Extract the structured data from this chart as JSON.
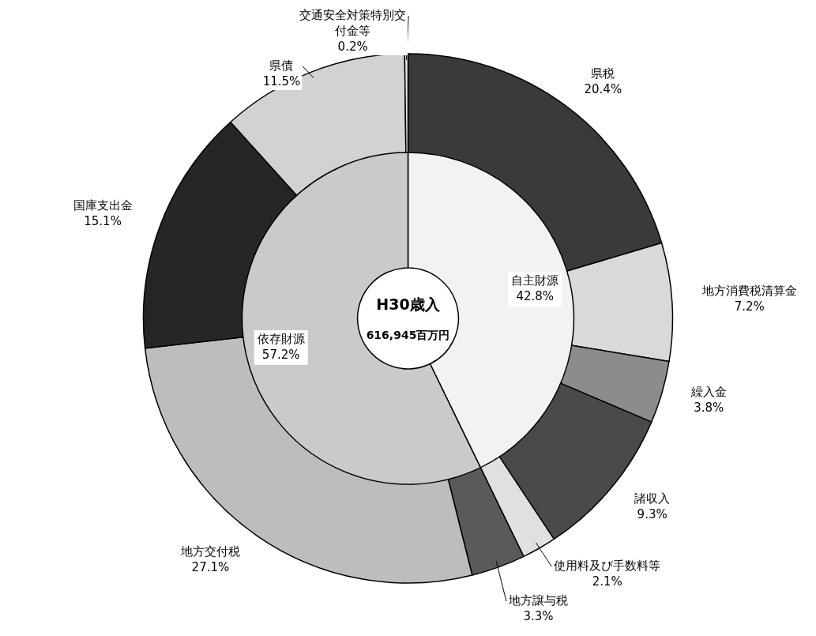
{
  "chart_data": [
    {
      "type": "donut",
      "categories": [
        "県税",
        "地方消費税清算金",
        "繰入金",
        "諸収入",
        "使用料及び手数料等",
        "地方譲与税",
        "地方交付税",
        "国庫支出金",
        "県債",
        "交通安全対策特別交付金等"
      ],
      "values": [
        20.4,
        7.2,
        3.8,
        9.3,
        2.1,
        3.3,
        27.1,
        15.1,
        11.5,
        0.2
      ],
      "value_labels": [
        "20.4%",
        "7.2%",
        "3.8%",
        "9.3%",
        "2.1%",
        "3.3%",
        "27.1%",
        "15.1%",
        "11.5%",
        "0.2%"
      ],
      "colors": [
        "#3a3a3a",
        "#d9d9d9",
        "#8c8c8c",
        "#4a4a4a",
        "#e0e0e0",
        "#5a5a5a",
        "#bdbdbd",
        "#262626",
        "#d2d2d2",
        "#ececec"
      ]
    },
    {
      "type": "donut",
      "title": "H30歳入",
      "subtitle": "616,945百万円",
      "categories": [
        "自主財源",
        "依存財源"
      ],
      "values": [
        42.8,
        57.2
      ],
      "value_labels": [
        "42.8%",
        "57.2%"
      ],
      "colors": [
        "#f2f2f2",
        "#cacaca"
      ]
    }
  ]
}
